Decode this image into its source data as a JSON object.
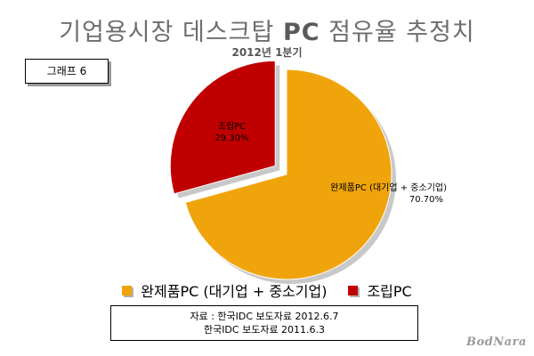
{
  "header": {
    "title_main": "기업용시장 데스크탑 ",
    "title_pc": "PC",
    "title_end": " 점유율 추정치",
    "subtitle": "2012년 1분기"
  },
  "badge": {
    "label": "그래프 6"
  },
  "chart_data": {
    "type": "pie",
    "title": "기업용시장 데스크탑 PC 점유율 추정치",
    "subtitle": "2012년 1분기",
    "categories": [
      "완제품PC (대기업 + 중소기업)",
      "조립PC"
    ],
    "values": [
      70.7,
      29.3
    ],
    "labels": [
      "70.70%",
      "29.30%"
    ],
    "slice_names": [
      "완제품PC (대기업 + 중소기업)",
      "조립PC"
    ],
    "colors": [
      "#f0a40c",
      "#c00000"
    ],
    "exploded": "조립PC",
    "legend": "bottom"
  },
  "legend": {
    "items": [
      {
        "label": "완제품PC (대기업 + 중소기업)",
        "color": "#f0a40c"
      },
      {
        "label": "조립PC",
        "color": "#c00000"
      }
    ]
  },
  "source": {
    "line1": "자료 : 한국IDC 보도자료 2012.6.7",
    "line2": "한국IDC 보도자료 2011.6.3"
  },
  "logo": {
    "text": "BodNara"
  }
}
